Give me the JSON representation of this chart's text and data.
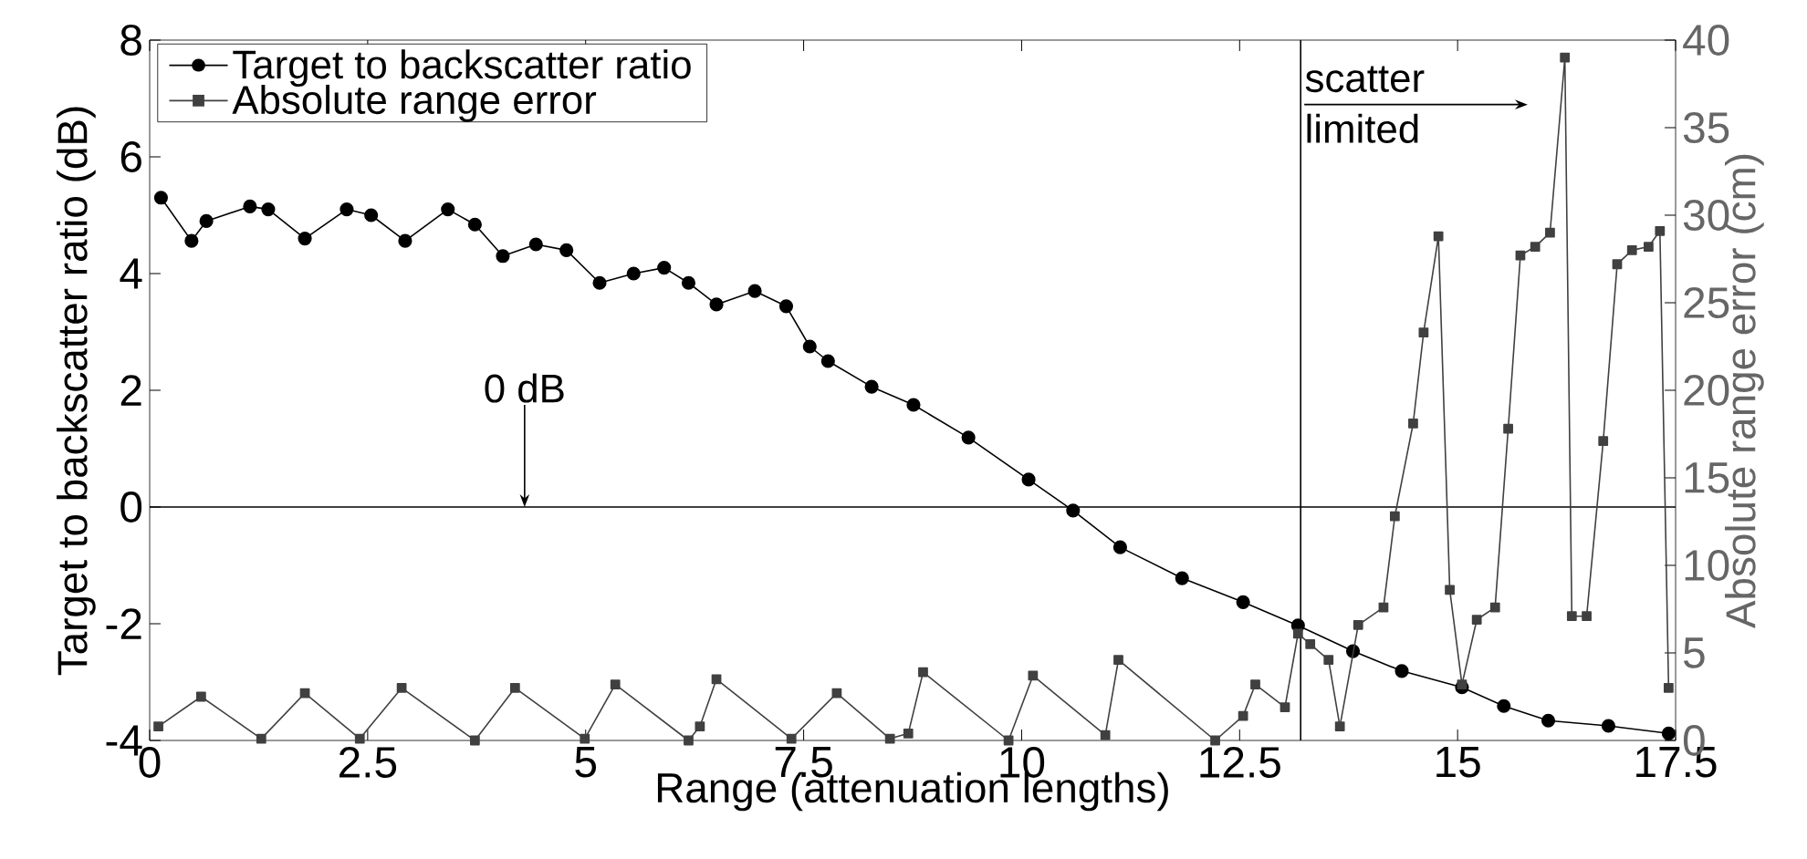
{
  "chart_data": {
    "type": "line",
    "xlabel": "Range (attenuation lengths)",
    "ylabel": "Target to backscatter ratio (dB)",
    "y2label": "Absolute range error (cm)",
    "xlim": [
      0,
      17.5
    ],
    "xticks": [
      0,
      2.5,
      5,
      7.5,
      10,
      12.5,
      15,
      17.5
    ],
    "ylim": [
      -4,
      8
    ],
    "yticks": [
      -4,
      -2,
      0,
      2,
      4,
      6,
      8
    ],
    "y2lim": [
      0,
      40
    ],
    "y2ticks": [
      0,
      5,
      10,
      15,
      20,
      25,
      30,
      35,
      40
    ],
    "legend": "top left",
    "grid": false,
    "series": [
      {
        "name": "Target to backscatter ratio",
        "color": "#000000",
        "marker": "circle",
        "axis": "y",
        "x": [
          0.13,
          0.48,
          0.65,
          1.15,
          1.36,
          1.78,
          2.26,
          2.54,
          2.93,
          3.42,
          3.73,
          4.05,
          4.43,
          4.78,
          5.16,
          5.55,
          5.9,
          6.18,
          6.5,
          6.94,
          7.3,
          7.57,
          7.78,
          8.28,
          8.76,
          9.39,
          10.08,
          10.59,
          11.13,
          11.84,
          12.54,
          13.17,
          13.8,
          14.36,
          15.05,
          15.53,
          16.04,
          16.73,
          17.42
        ],
        "values": [
          5.3,
          4.56,
          4.9,
          5.15,
          5.1,
          4.6,
          5.1,
          5.0,
          4.56,
          5.1,
          4.84,
          4.3,
          4.5,
          4.4,
          3.84,
          4.0,
          4.1,
          3.84,
          3.47,
          3.7,
          3.44,
          2.75,
          2.5,
          2.06,
          1.75,
          1.19,
          0.47,
          -0.06,
          -0.69,
          -1.22,
          -1.63,
          -2.03,
          -2.47,
          -2.81,
          -3.09,
          -3.41,
          -3.66,
          -3.75,
          -3.88
        ]
      },
      {
        "name": "Absolute range error",
        "color": "#404040",
        "marker": "square",
        "axis": "y2",
        "x": [
          0.1,
          0.59,
          1.28,
          1.78,
          2.41,
          2.89,
          3.73,
          4.19,
          4.99,
          5.34,
          6.18,
          6.31,
          6.5,
          7.36,
          7.88,
          8.49,
          8.7,
          8.87,
          9.85,
          10.13,
          10.96,
          11.11,
          12.22,
          12.54,
          12.68,
          13.02,
          13.17,
          13.31,
          13.52,
          13.65,
          13.86,
          14.15,
          14.28,
          14.49,
          14.61,
          14.78,
          14.91,
          15.05,
          15.22,
          15.43,
          15.58,
          15.72,
          15.89,
          16.06,
          16.23,
          16.31,
          16.48,
          16.67,
          16.83,
          17.0,
          17.19,
          17.32,
          17.42
        ],
        "values": [
          0.8,
          2.5,
          0.1,
          2.7,
          0.1,
          3.0,
          0,
          3.0,
          0.1,
          3.2,
          0,
          0.8,
          3.5,
          0.1,
          2.7,
          0.1,
          0.4,
          3.9,
          0,
          3.7,
          0.3,
          4.6,
          0,
          1.4,
          3.2,
          1.9,
          6.1,
          5.5,
          4.6,
          0.8,
          6.6,
          7.6,
          12.8,
          18.1,
          23.3,
          28.8,
          8.6,
          3.2,
          6.9,
          7.6,
          17.8,
          27.7,
          28.2,
          29.0,
          39.0,
          7.1,
          7.1,
          17.1,
          27.2,
          28.0,
          28.2,
          29.1,
          3.0
        ]
      }
    ],
    "ref_lines": [
      {
        "axis": "y",
        "value": 0
      },
      {
        "axis": "x",
        "value": 13.2,
        "label": "scatter limited"
      }
    ],
    "annotations": [
      {
        "text": "0 dB",
        "x": 4.3,
        "y": 0
      }
    ]
  }
}
